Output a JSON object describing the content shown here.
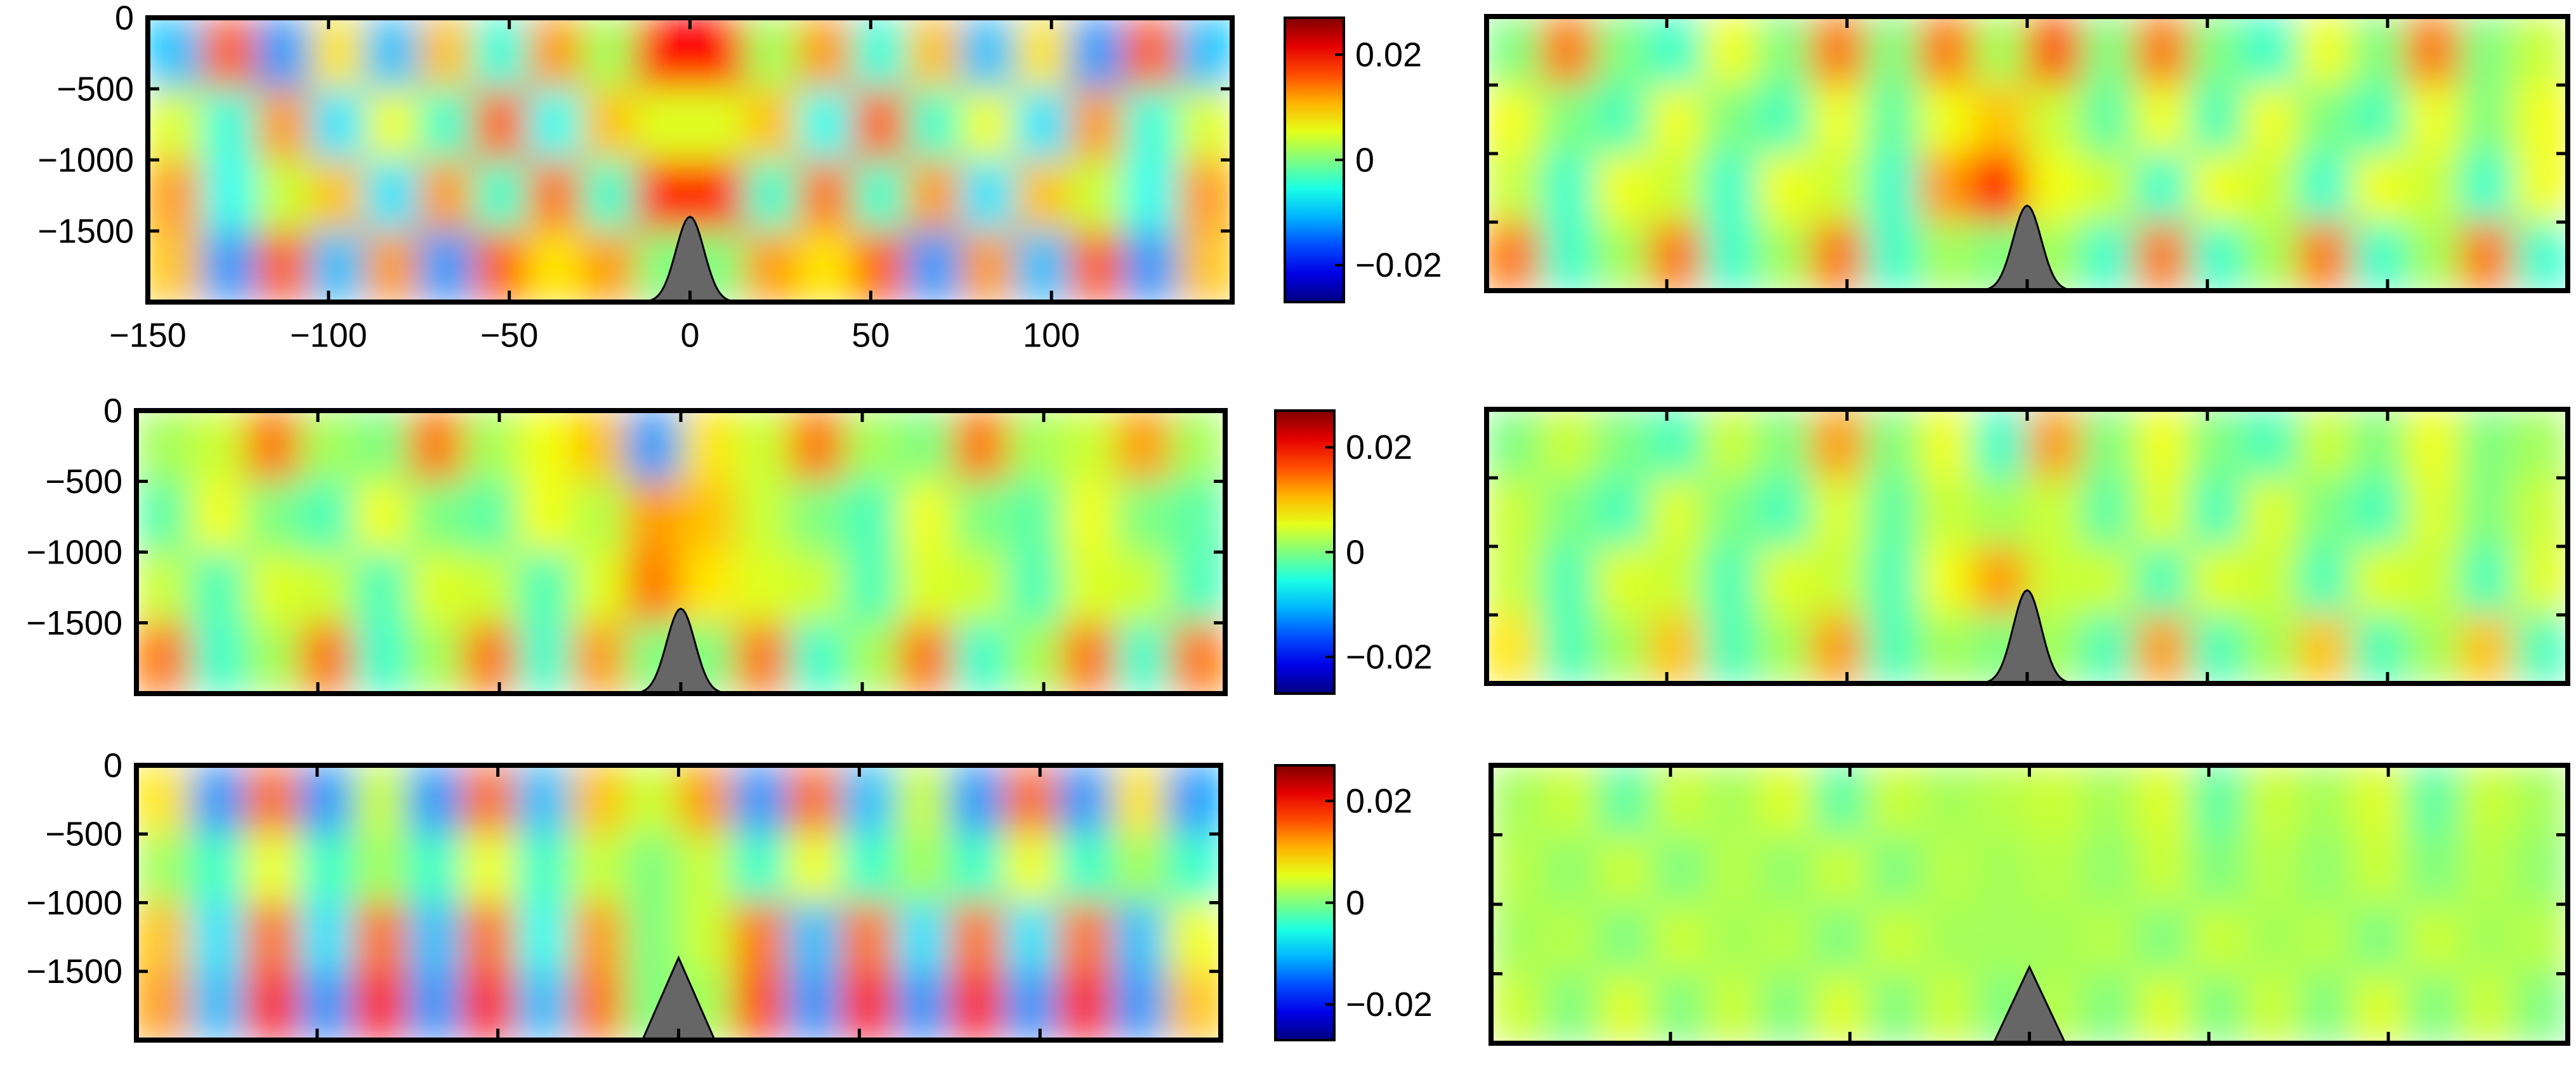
{
  "chart_data": [
    {
      "type": "heatmap",
      "xlim": [
        -150,
        150
      ],
      "ylim": [
        -2000,
        0
      ],
      "xticks": [
        {
          "value": -150,
          "label": "−150"
        },
        {
          "value": -100,
          "label": "−100"
        },
        {
          "value": -50,
          "label": "−50"
        },
        0,
        50,
        100
      ],
      "yticks": [
        0,
        {
          "value": -500,
          "label": "−500"
        },
        {
          "value": -1000,
          "label": "−1000"
        },
        {
          "value": -1500,
          "label": "−1500"
        }
      ],
      "show_xtick_labels": true,
      "show_ytick_labels": true,
      "colormap": "jet",
      "clim": [
        -0.027,
        0.027
      ],
      "colorbar": {
        "ticks": [
          {
            "value": -0.02,
            "label": "−0.02"
          },
          0,
          0.02
        ]
      },
      "mountain": {
        "shape": "gaussian",
        "center": 0,
        "peak": -1400,
        "half_width": 10,
        "color": "#666666"
      },
      "z": [
        [
          -0.01,
          0.015,
          -0.012,
          0.008,
          -0.01,
          0.01,
          -0.005,
          0.012,
          0.002,
          0.02,
          0.02,
          0.002,
          0.012,
          -0.005,
          0.01,
          -0.01,
          0.008,
          -0.012,
          0.015,
          -0.01
        ],
        [
          0.005,
          -0.005,
          0.012,
          -0.008,
          0.006,
          -0.004,
          0.015,
          -0.006,
          0.01,
          0.005,
          0.005,
          0.01,
          -0.006,
          0.015,
          -0.004,
          0.006,
          -0.008,
          0.012,
          -0.005,
          0.005
        ],
        [
          0.012,
          -0.006,
          0.004,
          0.01,
          -0.008,
          0.012,
          -0.004,
          0.014,
          -0.004,
          0.018,
          0.018,
          -0.004,
          0.014,
          -0.004,
          0.012,
          -0.008,
          0.01,
          0.004,
          -0.006,
          0.012
        ],
        [
          0.01,
          -0.012,
          0.015,
          -0.01,
          0.012,
          -0.012,
          0.015,
          0.008,
          0.012,
          0.0,
          0.0,
          0.012,
          0.008,
          0.015,
          -0.012,
          0.012,
          -0.01,
          0.015,
          -0.012,
          0.01
        ]
      ]
    },
    {
      "type": "heatmap",
      "xlim": [
        -150,
        150
      ],
      "ylim": [
        -2000,
        0
      ],
      "xticks": [
        -150,
        -100,
        -50,
        0,
        50,
        100
      ],
      "yticks": [
        0,
        {
          "value": -500,
          "label": "−500"
        },
        {
          "value": -1000,
          "label": "−1000"
        },
        {
          "value": -1500,
          "label": "−1500"
        }
      ],
      "show_xtick_labels": false,
      "show_ytick_labels": true,
      "colormap": "jet",
      "clim": [
        -0.027,
        0.027
      ],
      "colorbar": {
        "ticks": [
          {
            "value": -0.02,
            "label": "−0.02"
          },
          0,
          0.02
        ]
      },
      "mountain": {
        "shape": "gaussian",
        "center": 0,
        "peak": -1400,
        "half_width": 10,
        "color": "#666666"
      },
      "z": [
        [
          0.002,
          0.004,
          0.014,
          0.002,
          0.0,
          0.014,
          0.002,
          0.006,
          0.01,
          -0.012,
          0.008,
          0.004,
          0.014,
          0.002,
          0.0,
          0.014,
          0.002,
          0.004,
          0.012,
          0.002
        ],
        [
          -0.002,
          0.006,
          0.0,
          -0.003,
          0.006,
          0.0,
          -0.002,
          0.006,
          0.003,
          0.012,
          0.01,
          0.004,
          0.0,
          -0.003,
          0.006,
          0.0,
          -0.002,
          0.006,
          0.0,
          -0.002
        ],
        [
          0.004,
          -0.003,
          0.005,
          0.004,
          -0.003,
          0.005,
          0.004,
          -0.003,
          0.005,
          0.014,
          0.008,
          0.005,
          0.004,
          -0.003,
          0.005,
          0.004,
          -0.003,
          0.005,
          0.004,
          -0.003
        ],
        [
          0.014,
          -0.004,
          0.002,
          0.014,
          -0.004,
          0.002,
          0.014,
          -0.004,
          0.012,
          0.0,
          0.0,
          0.014,
          -0.004,
          0.002,
          0.014,
          -0.004,
          0.002,
          0.014,
          -0.004,
          0.014
        ]
      ]
    },
    {
      "type": "heatmap",
      "xlim": [
        -150,
        150
      ],
      "ylim": [
        -2000,
        0
      ],
      "xticks": [
        -150,
        -100,
        -50,
        0,
        50,
        100
      ],
      "yticks": [
        0,
        {
          "value": -500,
          "label": "−500"
        },
        {
          "value": -1000,
          "label": "−1000"
        },
        {
          "value": -1500,
          "label": "−1500"
        }
      ],
      "show_xtick_labels": false,
      "show_ytick_labels": true,
      "colormap": "jet",
      "clim": [
        -0.027,
        0.027
      ],
      "colorbar": {
        "ticks": [
          {
            "value": -0.02,
            "label": "−0.02"
          },
          0,
          0.02
        ]
      },
      "mountain": {
        "shape": "triangle",
        "center": 0,
        "peak": -1400,
        "half_width": 10,
        "color": "#666666"
      },
      "z": [
        [
          0.008,
          -0.012,
          0.014,
          -0.012,
          0.004,
          -0.012,
          0.014,
          -0.01,
          0.01,
          0.004,
          0.012,
          -0.012,
          0.014,
          -0.01,
          0.004,
          -0.012,
          0.014,
          -0.012,
          0.008,
          -0.012
        ],
        [
          0.002,
          -0.004,
          0.006,
          -0.004,
          0.002,
          -0.004,
          0.006,
          -0.004,
          0.004,
          0.0,
          0.004,
          -0.004,
          0.006,
          -0.004,
          0.002,
          -0.004,
          0.006,
          -0.004,
          0.002,
          -0.004
        ],
        [
          0.01,
          -0.008,
          0.014,
          -0.008,
          0.014,
          -0.01,
          0.014,
          -0.006,
          0.012,
          0.0,
          0.004,
          0.014,
          -0.01,
          0.014,
          -0.008,
          0.014,
          -0.008,
          0.014,
          -0.01,
          0.006
        ],
        [
          0.012,
          -0.01,
          0.018,
          -0.012,
          0.018,
          -0.012,
          0.018,
          -0.01,
          0.014,
          0.0,
          0.002,
          0.016,
          -0.012,
          0.018,
          -0.012,
          0.018,
          -0.012,
          0.018,
          -0.012,
          0.01
        ]
      ]
    },
    {
      "type": "heatmap",
      "xlim": [
        -150,
        150
      ],
      "ylim": [
        -2000,
        0
      ],
      "xticks": [
        -150,
        -100,
        -50,
        0,
        50,
        100
      ],
      "yticks": [
        0,
        -500,
        -1000,
        -1500
      ],
      "show_xtick_labels": false,
      "show_ytick_labels": false,
      "colormap": "jet",
      "clim": [
        -0.027,
        0.027
      ],
      "mountain": {
        "shape": "gaussian",
        "center": 0,
        "peak": -1380,
        "half_width": 10,
        "color": "#666666"
      },
      "z": [
        [
          0.0,
          0.014,
          0.0,
          -0.004,
          0.006,
          0.0,
          0.014,
          0.0,
          0.014,
          0.002,
          0.016,
          0.0,
          0.014,
          0.0,
          -0.004,
          0.006,
          0.0,
          0.014,
          0.0,
          0.004
        ],
        [
          0.006,
          0.0,
          -0.003,
          0.006,
          0.0,
          -0.003,
          0.006,
          -0.002,
          0.006,
          0.01,
          0.004,
          -0.002,
          0.006,
          -0.003,
          0.006,
          0.0,
          -0.003,
          0.006,
          0.0,
          0.006
        ],
        [
          0.004,
          -0.004,
          0.006,
          0.004,
          -0.004,
          0.006,
          0.004,
          -0.004,
          0.012,
          0.02,
          0.006,
          0.004,
          -0.004,
          0.006,
          0.004,
          -0.004,
          0.006,
          0.004,
          -0.004,
          0.006
        ],
        [
          0.014,
          -0.004,
          0.002,
          0.014,
          -0.004,
          0.002,
          0.014,
          -0.004,
          0.002,
          0.0,
          0.002,
          -0.004,
          0.014,
          -0.004,
          0.002,
          0.014,
          -0.004,
          0.002,
          0.014,
          -0.004
        ]
      ]
    },
    {
      "type": "heatmap",
      "xlim": [
        -150,
        150
      ],
      "ylim": [
        -2000,
        0
      ],
      "xticks": [
        -150,
        -100,
        -50,
        0,
        50,
        100
      ],
      "yticks": [
        0,
        -500,
        -1000,
        -1500
      ],
      "show_xtick_labels": false,
      "show_ytick_labels": false,
      "colormap": "jet",
      "clim": [
        -0.027,
        0.027
      ],
      "mountain": {
        "shape": "gaussian",
        "center": 0,
        "peak": -1320,
        "half_width": 10,
        "color": "#666666"
      },
      "z": [
        [
          0.0,
          0.004,
          0.0,
          -0.003,
          0.004,
          0.0,
          0.012,
          0.0,
          0.006,
          -0.004,
          0.012,
          0.0,
          0.006,
          0.0,
          -0.003,
          0.004,
          0.0,
          0.006,
          0.0,
          0.002
        ],
        [
          0.004,
          0.0,
          -0.003,
          0.005,
          0.0,
          -0.003,
          0.005,
          -0.002,
          0.004,
          0.002,
          0.004,
          -0.002,
          0.005,
          -0.003,
          0.005,
          0.0,
          -0.003,
          0.005,
          0.0,
          0.004
        ],
        [
          0.004,
          -0.003,
          0.005,
          0.004,
          -0.003,
          0.005,
          0.004,
          -0.003,
          0.006,
          0.012,
          0.004,
          0.004,
          -0.003,
          0.005,
          0.004,
          -0.003,
          0.005,
          0.004,
          -0.003,
          0.005
        ],
        [
          0.008,
          -0.003,
          0.002,
          0.01,
          -0.003,
          0.002,
          0.012,
          -0.003,
          0.002,
          0.0,
          0.002,
          -0.003,
          0.012,
          -0.003,
          0.002,
          0.01,
          -0.003,
          0.002,
          0.01,
          -0.003
        ]
      ]
    },
    {
      "type": "heatmap",
      "xlim": [
        -150,
        150
      ],
      "ylim": [
        -2000,
        0
      ],
      "xticks": [
        -150,
        -100,
        -50,
        0,
        50,
        100
      ],
      "yticks": [
        0,
        -500,
        -1000,
        -1500
      ],
      "show_xtick_labels": false,
      "show_ytick_labels": false,
      "colormap": "jet",
      "clim": [
        -0.027,
        0.027
      ],
      "mountain": {
        "shape": "triangle",
        "center": 0,
        "peak": -1450,
        "half_width": 10,
        "color": "#666666"
      },
      "z": [
        [
          0.002,
          0.004,
          -0.002,
          0.004,
          0.002,
          0.005,
          -0.002,
          0.004,
          0.002,
          0.003,
          0.004,
          0.002,
          0.005,
          -0.002,
          0.004,
          0.002,
          0.005,
          -0.002,
          0.004,
          0.002
        ],
        [
          0.003,
          0.001,
          0.004,
          0.0,
          0.003,
          0.001,
          0.004,
          0.0,
          0.003,
          0.002,
          0.003,
          0.001,
          0.004,
          0.0,
          0.003,
          0.001,
          0.004,
          0.0,
          0.003,
          0.001
        ],
        [
          0.002,
          0.003,
          0.0,
          0.004,
          0.002,
          0.003,
          0.0,
          0.004,
          0.002,
          0.002,
          0.002,
          0.003,
          0.0,
          0.004,
          0.002,
          0.003,
          0.0,
          0.004,
          0.002,
          0.003
        ],
        [
          0.004,
          0.0,
          0.005,
          0.0,
          0.004,
          0.0,
          0.005,
          0.0,
          0.004,
          0.0,
          0.003,
          0.0,
          0.005,
          0.0,
          0.004,
          0.0,
          0.005,
          0.0,
          0.004,
          0.0
        ]
      ]
    }
  ]
}
